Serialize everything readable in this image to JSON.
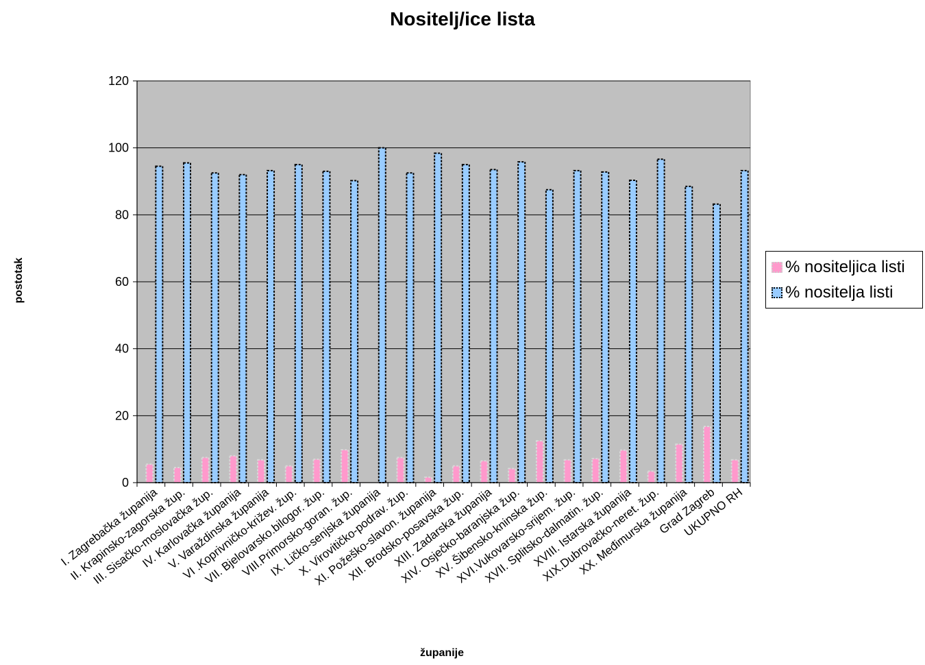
{
  "chart_data": {
    "type": "bar",
    "title": "Nositelj/ice lista",
    "xlabel": "županije",
    "ylabel": "postotak",
    "ylim": [
      0,
      120
    ],
    "yticks": [
      0,
      20,
      40,
      60,
      80,
      100,
      120
    ],
    "grid": true,
    "legend_position": "right",
    "categories": [
      "I. Zagrebačka županija",
      "II. Krapinsko-zagorska žup.",
      "III. Sisačko-moslovačka žup.",
      "IV. Karlovačka županija",
      "V. Varaždinska županija",
      "VI .Koprivničko-križev. žup.",
      "VII. Bjelovarsko.bilogor. žup.",
      "VIII.Primorsko-goran. žup.",
      "IX. Ličko-senjska županija",
      "X. Virovitičko-podrav. žup.",
      "XI. Požeško-slavon. županija",
      "XII. Brodsko-posavska žup.",
      "XIII. Zadarska županija",
      "XIV. Osječko-baranjska žup.",
      "XV. Šibensko-kninska žup.",
      "XVI.Vukovarsko-srijem. žup.",
      "XVII. Splitsko-dalmatin. žup.",
      "XVIII. Istarska županija",
      "XIX.Dubrovačko-neret. žup.",
      "XX. Međimurska županija",
      "Grad Zagreb",
      "UKUPNO RH"
    ],
    "series": [
      {
        "name": "% nositeljica listi",
        "values": [
          5.5,
          4.5,
          7.5,
          8,
          6.8,
          5,
          7,
          9.8,
          0,
          7.5,
          1.6,
          5,
          6.5,
          4.2,
          12.5,
          6.8,
          7.2,
          9.7,
          3.4,
          11.5,
          16.8,
          6.8
        ]
      },
      {
        "name": "% nositelja listi",
        "values": [
          94.5,
          95.5,
          92.5,
          92,
          93.2,
          95,
          93,
          90.2,
          100,
          92.5,
          98.4,
          95,
          93.5,
          95.8,
          87.5,
          93.2,
          92.8,
          90.3,
          96.6,
          88.5,
          83.2,
          93.2
        ]
      }
    ],
    "colors": {
      "plot_background": "#c0c0c0",
      "series_0": "#ff99cc",
      "series_1": "#99ccff"
    }
  }
}
